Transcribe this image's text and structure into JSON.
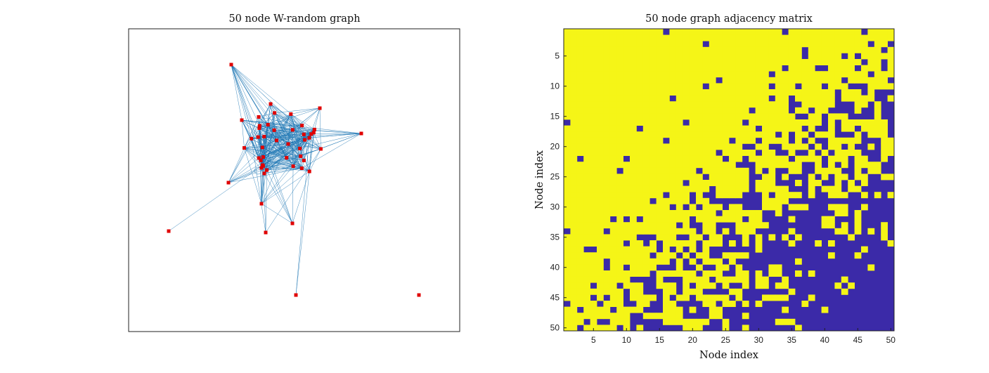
{
  "chart_data": [
    {
      "type": "network",
      "title": "50 node W-random graph",
      "node_count": 50,
      "node_color": "#e00000",
      "edge_color": "#1f77b4",
      "outlier_nodes": 5
    },
    {
      "type": "heatmap",
      "title": "50 node graph adjacency matrix",
      "xlabel": "Node index",
      "ylabel": "Node index",
      "xlim": [
        0.5,
        50.5
      ],
      "ylim": [
        0.5,
        50.5
      ],
      "xticks": [
        5,
        10,
        15,
        20,
        25,
        30,
        35,
        40,
        45,
        50
      ],
      "yticks": [
        5,
        10,
        15,
        20,
        25,
        30,
        35,
        40,
        45,
        50
      ],
      "colors": {
        "one": "#f5f517",
        "zero": "#3b2aa8"
      }
    }
  ]
}
